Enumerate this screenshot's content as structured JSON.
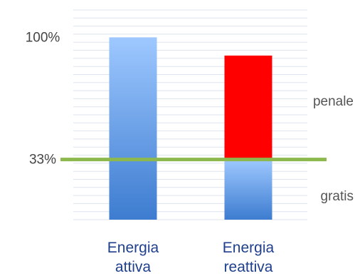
{
  "chart_data": {
    "type": "bar",
    "title": "",
    "xlabel": "",
    "ylabel": "",
    "categories": [
      [
        "Energia",
        "attiva"
      ],
      [
        "Energia",
        "reattiva"
      ]
    ],
    "series": [
      {
        "values": [
          100,
          90
        ],
        "segments": [
          {
            "label": "gratis",
            "values": [
              33,
              33
            ],
            "colors": [
              "#3f7fd0",
              "#3f7fd0"
            ]
          },
          {
            "label": "penale",
            "values": [
              67,
              57
            ],
            "colors": [
              "#94bff8",
              "#ff0000"
            ]
          }
        ]
      }
    ],
    "ylim": [
      0,
      115
    ],
    "y_ticks": [
      {
        "value": 100,
        "label": "100%"
      },
      {
        "value": 33,
        "label": "33%"
      }
    ],
    "threshold": {
      "value": 33,
      "color": "#8cb84e"
    },
    "annotations": [
      {
        "text": "penale",
        "y": 65
      },
      {
        "text": "gratis",
        "y": 13
      }
    ],
    "grid": true,
    "colors": {
      "gridline": "#dde4ee",
      "category_text": "#1f3f8c"
    }
  }
}
